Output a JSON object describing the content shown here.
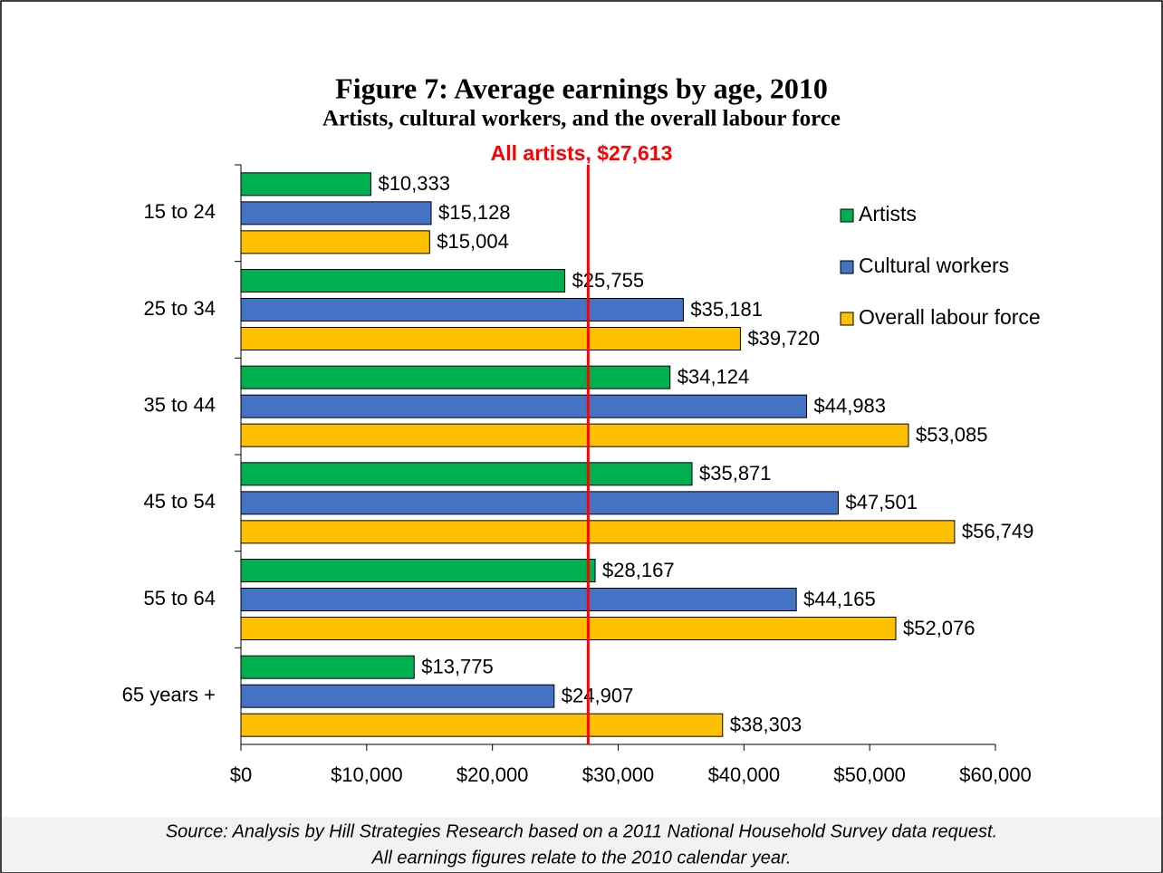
{
  "chart_data": {
    "type": "bar",
    "orientation": "horizontal",
    "title": "Figure 7: Average earnings by age, 2010",
    "subtitle": "Artists, cultural workers, and the overall labour force",
    "annotation": {
      "label": "All artists, $27,613",
      "value": 27613,
      "color": "#ff0000"
    },
    "categories": [
      "15 to 24",
      "25 to 34",
      "35 to 44",
      "45 to 54",
      "55 to 64",
      "65 years +"
    ],
    "series": [
      {
        "name": "Artists",
        "color": "#00b050",
        "values": [
          10333,
          25755,
          34124,
          35871,
          28167,
          13775
        ],
        "value_labels": [
          "$10,333",
          "$25,755",
          "$34,124",
          "$35,871",
          "$28,167",
          "$13,775"
        ]
      },
      {
        "name": "Cultural workers",
        "color": "#4472c4",
        "values": [
          15128,
          35181,
          44983,
          47501,
          44165,
          24907
        ],
        "value_labels": [
          "$15,128",
          "$35,181",
          "$44,983",
          "$47,501",
          "$44,165",
          "$24,907"
        ]
      },
      {
        "name": "Overall labour force",
        "color": "#ffc000",
        "values": [
          15004,
          39720,
          53085,
          56749,
          52076,
          38303
        ],
        "value_labels": [
          "$15,004",
          "$39,720",
          "$53,085",
          "$56,749",
          "$52,076",
          "$38,303"
        ]
      }
    ],
    "xlim": [
      0,
      60000
    ],
    "xticks": [
      {
        "value": 0,
        "label": "$0"
      },
      {
        "value": 10000,
        "label": "$10,000"
      },
      {
        "value": 20000,
        "label": "$20,000"
      },
      {
        "value": 30000,
        "label": "$30,000"
      },
      {
        "value": 40000,
        "label": "$40,000"
      },
      {
        "value": 50000,
        "label": "$50,000"
      },
      {
        "value": 60000,
        "label": "$60,000"
      }
    ],
    "legend": "right",
    "source": [
      "Source: Analysis by Hill Strategies Research based on a 2011 National Household Survey data request.",
      "All earnings figures relate to the 2010 calendar year."
    ]
  }
}
